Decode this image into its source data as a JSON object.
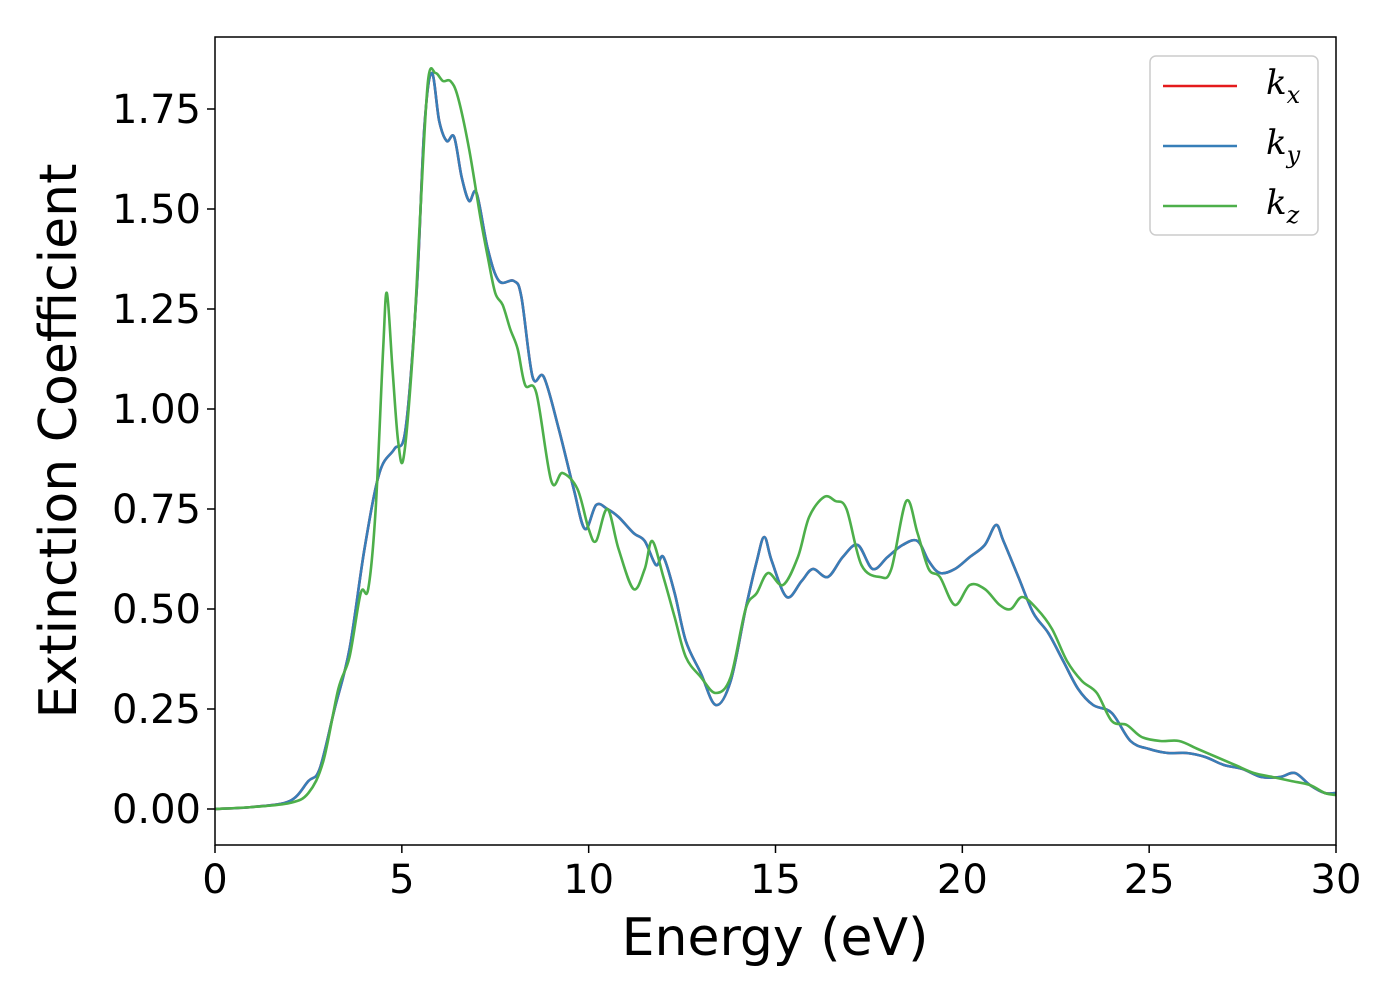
{
  "chart_data": {
    "type": "line",
    "xlabel": "Energy (eV)",
    "ylabel": "Extinction Coefficient",
    "xlim": [
      0,
      30
    ],
    "ylim": [
      -0.09,
      1.93
    ],
    "xticks": [
      0,
      5,
      10,
      15,
      20,
      25,
      30
    ],
    "xtick_labels": [
      "0",
      "5",
      "10",
      "15",
      "20",
      "25",
      "30"
    ],
    "yticks": [
      0,
      0.25,
      0.5,
      0.75,
      1.0,
      1.25,
      1.5,
      1.75
    ],
    "ytick_labels": [
      "0.00",
      "0.25",
      "0.50",
      "0.75",
      "1.00",
      "1.25",
      "1.50",
      "1.75"
    ],
    "grid": false,
    "legend_position": "top-right",
    "series": [
      {
        "name": "k",
        "subscript": "x",
        "color": "#e41a1c",
        "points": [
          [
            0,
            0
          ],
          [
            1,
            0.005
          ],
          [
            2,
            0.02
          ],
          [
            2.5,
            0.07
          ],
          [
            2.8,
            0.1
          ],
          [
            3.2,
            0.25
          ],
          [
            3.6,
            0.4
          ],
          [
            4.0,
            0.65
          ],
          [
            4.4,
            0.84
          ],
          [
            4.8,
            0.9
          ],
          [
            5.1,
            0.95
          ],
          [
            5.4,
            1.3
          ],
          [
            5.6,
            1.7
          ],
          [
            5.8,
            1.84
          ],
          [
            6.0,
            1.72
          ],
          [
            6.2,
            1.67
          ],
          [
            6.4,
            1.68
          ],
          [
            6.6,
            1.58
          ],
          [
            6.8,
            1.52
          ],
          [
            7.0,
            1.54
          ],
          [
            7.3,
            1.4
          ],
          [
            7.6,
            1.32
          ],
          [
            8.0,
            1.32
          ],
          [
            8.2,
            1.28
          ],
          [
            8.5,
            1.08
          ],
          [
            8.8,
            1.08
          ],
          [
            9.2,
            0.95
          ],
          [
            9.6,
            0.8
          ],
          [
            9.9,
            0.7
          ],
          [
            10.2,
            0.76
          ],
          [
            10.5,
            0.75
          ],
          [
            10.8,
            0.73
          ],
          [
            11.2,
            0.69
          ],
          [
            11.5,
            0.67
          ],
          [
            11.8,
            0.61
          ],
          [
            12.0,
            0.63
          ],
          [
            12.3,
            0.54
          ],
          [
            12.6,
            0.42
          ],
          [
            13.0,
            0.34
          ],
          [
            13.4,
            0.26
          ],
          [
            13.8,
            0.32
          ],
          [
            14.2,
            0.5
          ],
          [
            14.5,
            0.62
          ],
          [
            14.7,
            0.68
          ],
          [
            14.9,
            0.62
          ],
          [
            15.3,
            0.53
          ],
          [
            15.7,
            0.57
          ],
          [
            16.0,
            0.6
          ],
          [
            16.4,
            0.58
          ],
          [
            16.8,
            0.63
          ],
          [
            17.2,
            0.66
          ],
          [
            17.6,
            0.6
          ],
          [
            18.0,
            0.63
          ],
          [
            18.4,
            0.66
          ],
          [
            18.8,
            0.67
          ],
          [
            19.1,
            0.62
          ],
          [
            19.4,
            0.59
          ],
          [
            19.8,
            0.6
          ],
          [
            20.2,
            0.63
          ],
          [
            20.6,
            0.66
          ],
          [
            20.9,
            0.71
          ],
          [
            21.1,
            0.67
          ],
          [
            21.5,
            0.58
          ],
          [
            21.9,
            0.49
          ],
          [
            22.3,
            0.44
          ],
          [
            22.7,
            0.37
          ],
          [
            23.1,
            0.3
          ],
          [
            23.5,
            0.26
          ],
          [
            24.0,
            0.24
          ],
          [
            24.5,
            0.17
          ],
          [
            25.0,
            0.15
          ],
          [
            25.5,
            0.14
          ],
          [
            26.0,
            0.14
          ],
          [
            26.5,
            0.13
          ],
          [
            27.0,
            0.11
          ],
          [
            27.5,
            0.1
          ],
          [
            28.0,
            0.08
          ],
          [
            28.5,
            0.08
          ],
          [
            28.9,
            0.09
          ],
          [
            29.3,
            0.06
          ],
          [
            29.7,
            0.04
          ],
          [
            30.0,
            0.04
          ]
        ]
      },
      {
        "name": "k",
        "subscript": "y",
        "color": "#377eb8",
        "points": [
          [
            0,
            0
          ],
          [
            1,
            0.005
          ],
          [
            2,
            0.02
          ],
          [
            2.5,
            0.07
          ],
          [
            2.8,
            0.1
          ],
          [
            3.2,
            0.25
          ],
          [
            3.6,
            0.4
          ],
          [
            4.0,
            0.65
          ],
          [
            4.4,
            0.84
          ],
          [
            4.8,
            0.9
          ],
          [
            5.1,
            0.95
          ],
          [
            5.4,
            1.3
          ],
          [
            5.6,
            1.7
          ],
          [
            5.8,
            1.84
          ],
          [
            6.0,
            1.72
          ],
          [
            6.2,
            1.67
          ],
          [
            6.4,
            1.68
          ],
          [
            6.6,
            1.58
          ],
          [
            6.8,
            1.52
          ],
          [
            7.0,
            1.54
          ],
          [
            7.3,
            1.4
          ],
          [
            7.6,
            1.32
          ],
          [
            8.0,
            1.32
          ],
          [
            8.2,
            1.28
          ],
          [
            8.5,
            1.08
          ],
          [
            8.8,
            1.08
          ],
          [
            9.2,
            0.95
          ],
          [
            9.6,
            0.8
          ],
          [
            9.9,
            0.7
          ],
          [
            10.2,
            0.76
          ],
          [
            10.5,
            0.75
          ],
          [
            10.8,
            0.73
          ],
          [
            11.2,
            0.69
          ],
          [
            11.5,
            0.67
          ],
          [
            11.8,
            0.61
          ],
          [
            12.0,
            0.63
          ],
          [
            12.3,
            0.54
          ],
          [
            12.6,
            0.42
          ],
          [
            13.0,
            0.34
          ],
          [
            13.4,
            0.26
          ],
          [
            13.8,
            0.32
          ],
          [
            14.2,
            0.5
          ],
          [
            14.5,
            0.62
          ],
          [
            14.7,
            0.68
          ],
          [
            14.9,
            0.62
          ],
          [
            15.3,
            0.53
          ],
          [
            15.7,
            0.57
          ],
          [
            16.0,
            0.6
          ],
          [
            16.4,
            0.58
          ],
          [
            16.8,
            0.63
          ],
          [
            17.2,
            0.66
          ],
          [
            17.6,
            0.6
          ],
          [
            18.0,
            0.63
          ],
          [
            18.4,
            0.66
          ],
          [
            18.8,
            0.67
          ],
          [
            19.1,
            0.62
          ],
          [
            19.4,
            0.59
          ],
          [
            19.8,
            0.6
          ],
          [
            20.2,
            0.63
          ],
          [
            20.6,
            0.66
          ],
          [
            20.9,
            0.71
          ],
          [
            21.1,
            0.67
          ],
          [
            21.5,
            0.58
          ],
          [
            21.9,
            0.49
          ],
          [
            22.3,
            0.44
          ],
          [
            22.7,
            0.37
          ],
          [
            23.1,
            0.3
          ],
          [
            23.5,
            0.26
          ],
          [
            24.0,
            0.24
          ],
          [
            24.5,
            0.17
          ],
          [
            25.0,
            0.15
          ],
          [
            25.5,
            0.14
          ],
          [
            26.0,
            0.14
          ],
          [
            26.5,
            0.13
          ],
          [
            27.0,
            0.11
          ],
          [
            27.5,
            0.1
          ],
          [
            28.0,
            0.08
          ],
          [
            28.5,
            0.08
          ],
          [
            28.9,
            0.09
          ],
          [
            29.3,
            0.06
          ],
          [
            29.7,
            0.04
          ],
          [
            30.0,
            0.04
          ]
        ]
      },
      {
        "name": "k",
        "subscript": "z",
        "color": "#4daf4a",
        "points": [
          [
            0,
            0
          ],
          [
            1,
            0.005
          ],
          [
            2,
            0.015
          ],
          [
            2.5,
            0.04
          ],
          [
            2.9,
            0.12
          ],
          [
            3.3,
            0.3
          ],
          [
            3.6,
            0.38
          ],
          [
            3.9,
            0.54
          ],
          [
            4.1,
            0.55
          ],
          [
            4.3,
            0.75
          ],
          [
            4.5,
            1.15
          ],
          [
            4.6,
            1.29
          ],
          [
            4.75,
            1.1
          ],
          [
            4.9,
            0.92
          ],
          [
            5.05,
            0.88
          ],
          [
            5.3,
            1.15
          ],
          [
            5.5,
            1.5
          ],
          [
            5.7,
            1.82
          ],
          [
            5.9,
            1.84
          ],
          [
            6.1,
            1.82
          ],
          [
            6.3,
            1.82
          ],
          [
            6.5,
            1.78
          ],
          [
            6.8,
            1.65
          ],
          [
            7.1,
            1.48
          ],
          [
            7.3,
            1.38
          ],
          [
            7.5,
            1.29
          ],
          [
            7.7,
            1.26
          ],
          [
            7.9,
            1.2
          ],
          [
            8.1,
            1.15
          ],
          [
            8.3,
            1.06
          ],
          [
            8.6,
            1.04
          ],
          [
            9.0,
            0.82
          ],
          [
            9.3,
            0.84
          ],
          [
            9.7,
            0.8
          ],
          [
            10.0,
            0.7
          ],
          [
            10.2,
            0.67
          ],
          [
            10.5,
            0.75
          ],
          [
            10.8,
            0.65
          ],
          [
            11.2,
            0.55
          ],
          [
            11.5,
            0.6
          ],
          [
            11.7,
            0.67
          ],
          [
            12.0,
            0.58
          ],
          [
            12.3,
            0.48
          ],
          [
            12.6,
            0.38
          ],
          [
            13.0,
            0.33
          ],
          [
            13.4,
            0.29
          ],
          [
            13.8,
            0.33
          ],
          [
            14.2,
            0.5
          ],
          [
            14.5,
            0.54
          ],
          [
            14.8,
            0.59
          ],
          [
            15.2,
            0.56
          ],
          [
            15.6,
            0.63
          ],
          [
            15.9,
            0.73
          ],
          [
            16.3,
            0.78
          ],
          [
            16.6,
            0.77
          ],
          [
            16.9,
            0.75
          ],
          [
            17.3,
            0.61
          ],
          [
            17.8,
            0.58
          ],
          [
            18.1,
            0.6
          ],
          [
            18.5,
            0.77
          ],
          [
            18.8,
            0.69
          ],
          [
            19.1,
            0.6
          ],
          [
            19.4,
            0.58
          ],
          [
            19.8,
            0.51
          ],
          [
            20.2,
            0.56
          ],
          [
            20.6,
            0.55
          ],
          [
            21.0,
            0.51
          ],
          [
            21.3,
            0.5
          ],
          [
            21.6,
            0.53
          ],
          [
            22.0,
            0.5
          ],
          [
            22.4,
            0.45
          ],
          [
            22.8,
            0.37
          ],
          [
            23.2,
            0.32
          ],
          [
            23.6,
            0.29
          ],
          [
            24.0,
            0.22
          ],
          [
            24.4,
            0.21
          ],
          [
            24.8,
            0.18
          ],
          [
            25.3,
            0.17
          ],
          [
            25.8,
            0.17
          ],
          [
            26.3,
            0.15
          ],
          [
            26.8,
            0.13
          ],
          [
            27.3,
            0.11
          ],
          [
            27.8,
            0.09
          ],
          [
            28.3,
            0.08
          ],
          [
            28.8,
            0.07
          ],
          [
            29.3,
            0.06
          ],
          [
            29.7,
            0.04
          ],
          [
            30.0,
            0.035
          ]
        ]
      }
    ]
  }
}
